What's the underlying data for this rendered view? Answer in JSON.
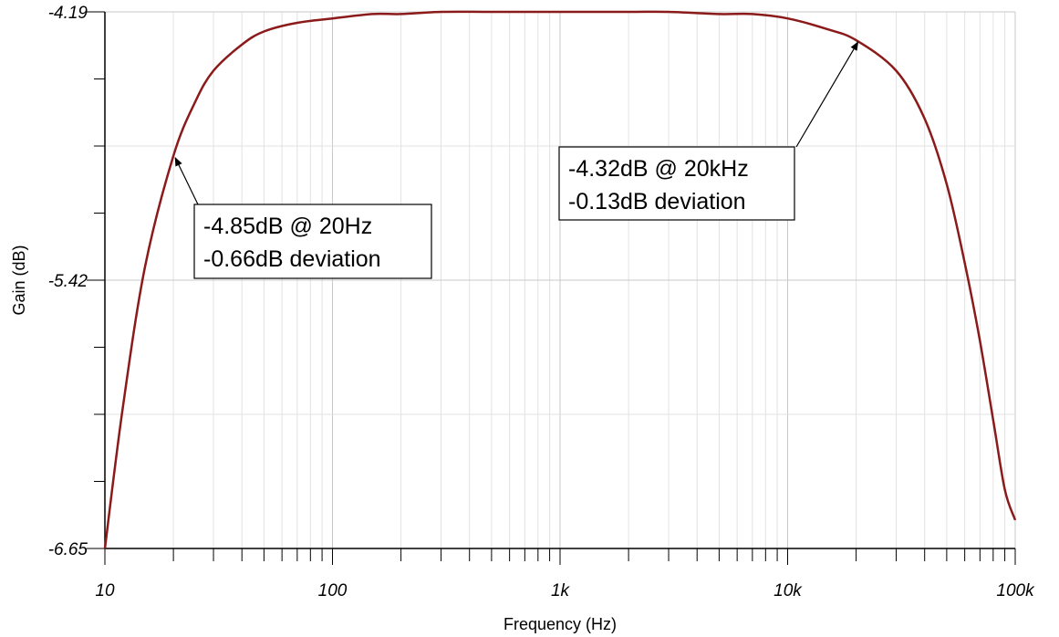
{
  "chart_data": {
    "type": "line",
    "xscale": "log",
    "xlim": [
      10,
      100000
    ],
    "ylim": [
      -6.65,
      -4.19
    ],
    "xlabel": "Frequency (Hz)",
    "ylabel": "Gain (dB)",
    "x_tick_labels": [
      {
        "value": 10,
        "label": "10"
      },
      {
        "value": 100,
        "label": "100"
      },
      {
        "value": 1000,
        "label": "1k"
      },
      {
        "value": 10000,
        "label": "10k"
      },
      {
        "value": 100000,
        "label": "100k"
      }
    ],
    "y_tick_labels": [
      {
        "value": -4.19,
        "label": "-4.19"
      },
      {
        "value": -5.42,
        "label": "-5.42"
      },
      {
        "value": -6.65,
        "label": "-6.65"
      }
    ],
    "grid": true,
    "line_color": "#8b1a1a",
    "series": [
      {
        "x": [
          10,
          12,
          15,
          20,
          25,
          30,
          40,
          50,
          70,
          100,
          150,
          200,
          300,
          500,
          1000,
          2000,
          3000,
          5000,
          7000,
          10000,
          15000,
          20000,
          30000,
          40000,
          50000,
          60000,
          70000,
          80000,
          90000,
          100000
        ],
        "y": [
          -6.65,
          -6.0,
          -5.36,
          -4.85,
          -4.6,
          -4.46,
          -4.34,
          -4.28,
          -4.24,
          -4.22,
          -4.2,
          -4.2,
          -4.19,
          -4.19,
          -4.19,
          -4.19,
          -4.19,
          -4.2,
          -4.2,
          -4.22,
          -4.27,
          -4.32,
          -4.46,
          -4.68,
          -4.98,
          -5.34,
          -5.7,
          -6.06,
          -6.38,
          -6.52
        ]
      }
    ],
    "annotations": [
      {
        "lines": [
          "-4.85dB @ 20Hz",
          "-0.66dB deviation"
        ],
        "x": 20,
        "y": -4.85
      },
      {
        "lines": [
          "-4.32dB @ 20kHz",
          "-0.13dB deviation"
        ],
        "x": 20000,
        "y": -4.32
      }
    ]
  }
}
